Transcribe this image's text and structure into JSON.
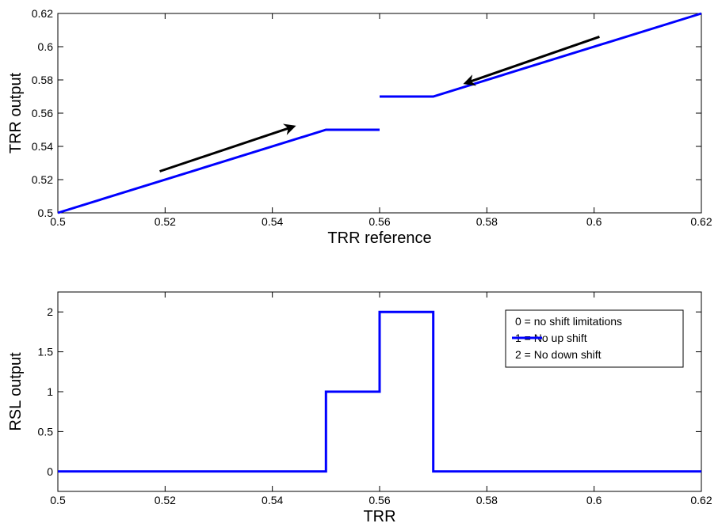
{
  "chart_data": [
    {
      "type": "line",
      "xlabel": "TRR reference",
      "ylabel": "TRR output",
      "xlim": [
        0.5,
        0.62
      ],
      "ylim": [
        0.5,
        0.62
      ],
      "xticks": [
        "0.5",
        "0.52",
        "0.54",
        "0.56",
        "0.58",
        "0.6",
        "0.62"
      ],
      "yticks": [
        "0.5",
        "0.52",
        "0.54",
        "0.56",
        "0.58",
        "0.6",
        "0.62"
      ],
      "grid": false,
      "series": [
        {
          "color": "#0000ff",
          "segments": [
            [
              [
                0.5,
                0.5
              ],
              [
                0.55,
                0.55
              ],
              [
                0.56,
                0.55
              ]
            ],
            [
              [
                0.56,
                0.57
              ],
              [
                0.57,
                0.57
              ],
              [
                0.62,
                0.62
              ]
            ]
          ]
        }
      ],
      "annotations": [
        {
          "kind": "arrow",
          "from": [
            0.519,
            0.525
          ],
          "to": [
            0.544,
            0.552
          ],
          "color": "#000000"
        },
        {
          "kind": "arrow",
          "from": [
            0.601,
            0.606
          ],
          "to": [
            0.576,
            0.578
          ],
          "color": "#000000"
        }
      ]
    },
    {
      "type": "line",
      "xlabel": "TRR",
      "ylabel": "RSL output",
      "xlim": [
        0.5,
        0.62
      ],
      "ylim": [
        -0.25,
        2.25
      ],
      "xticks": [
        "0.5",
        "0.52",
        "0.54",
        "0.56",
        "0.58",
        "0.6",
        "0.62"
      ],
      "yticks": [
        "0",
        "0.5",
        "1",
        "1.5",
        "2"
      ],
      "grid": false,
      "legend_position": "top-right",
      "legend": [
        "0 = no shift limitations",
        "1 = No up shift",
        "2 = No down shift"
      ],
      "series": [
        {
          "color": "#0000ff",
          "x": [
            0.5,
            0.55,
            0.55,
            0.56,
            0.56,
            0.57,
            0.57,
            0.62
          ],
          "y": [
            0,
            0,
            1,
            1,
            2,
            2,
            0,
            0
          ]
        }
      ]
    }
  ]
}
